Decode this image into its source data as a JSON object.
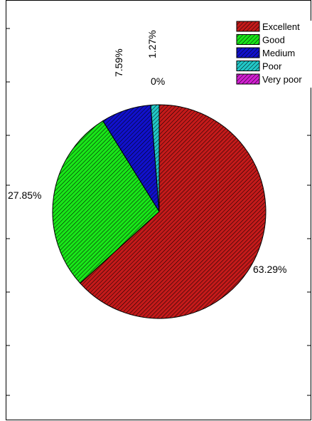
{
  "chart_data": {
    "type": "pie",
    "title": "",
    "categories": [
      "Excellent",
      "Good",
      "Medium",
      "Poor",
      "Very poor"
    ],
    "values": [
      63.29,
      27.85,
      7.59,
      1.27,
      0
    ],
    "value_labels": [
      "63.29%",
      "27.85%",
      "7.59%",
      "1.27%",
      "0%"
    ],
    "colors": [
      "#c41a1a",
      "#19e619",
      "#1111cc",
      "#22c8c8",
      "#d21fd2"
    ],
    "legend": {
      "placement": "top-right",
      "entries": [
        "Excellent",
        "Good",
        "Medium",
        "Poor",
        "Very poor"
      ]
    },
    "start_angle": "12 o'clock",
    "direction": "clockwise",
    "fill_pattern": "diagonal hatch"
  }
}
